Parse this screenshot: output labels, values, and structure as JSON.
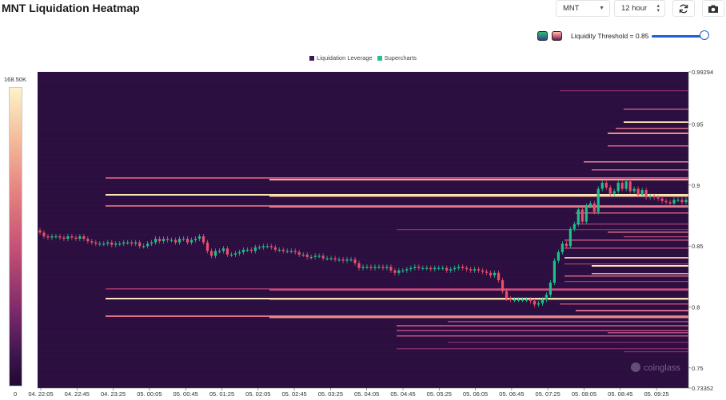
{
  "header": {
    "title": "MNT Liquidation Heatmap"
  },
  "controls": {
    "symbol_select": {
      "value": "MNT"
    },
    "timeframe_select": {
      "value": "12 hour"
    },
    "refresh_icon": "refresh-icon",
    "camera_icon": "camera-icon"
  },
  "threshold": {
    "label": "Liquidity Threshold = 0.85",
    "value": 0.85
  },
  "legend": {
    "items": [
      "Liquidation Leverage",
      "Supercharts"
    ]
  },
  "colorbar": {
    "max_label": "168.50K",
    "min_label": "0"
  },
  "colors": {
    "leverage": "#3b1a4f",
    "supercharts": "#23c28a",
    "up": "#1ec08a",
    "down": "#ea4f6a",
    "bg": "#2a0e3e"
  },
  "chart_data": {
    "type": "heatmap",
    "y_labels": [
      "0.99294",
      "0.95",
      "0.9",
      "0.85",
      "0.8",
      "0.75",
      "0.73352"
    ],
    "ylim": [
      0.73352,
      0.99294
    ],
    "x_labels": [
      "04. 22:05",
      "04. 22:45",
      "04. 23:25",
      "05. 00:05",
      "05. 00:45",
      "05. 01:25",
      "05. 02:05",
      "05. 02:45",
      "05. 03:25",
      "05. 04:05",
      "05. 04:45",
      "05. 05:25",
      "05. 06:05",
      "05. 06:45",
      "05. 07:25",
      "05. 08:05",
      "05. 08:45",
      "05. 09:25"
    ],
    "watermark": "coinglass",
    "candles_close": [
      0.861,
      0.858,
      0.857,
      0.858,
      0.858,
      0.857,
      0.856,
      0.858,
      0.857,
      0.856,
      0.858,
      0.856,
      0.854,
      0.853,
      0.852,
      0.852,
      0.852,
      0.853,
      0.851,
      0.852,
      0.852,
      0.853,
      0.853,
      0.852,
      0.853,
      0.85,
      0.85,
      0.852,
      0.853,
      0.856,
      0.854,
      0.856,
      0.855,
      0.855,
      0.853,
      0.856,
      0.856,
      0.853,
      0.855,
      0.856,
      0.858,
      0.853,
      0.846,
      0.842,
      0.846,
      0.846,
      0.848,
      0.843,
      0.843,
      0.844,
      0.845,
      0.847,
      0.847,
      0.846,
      0.849,
      0.849,
      0.85,
      0.85,
      0.849,
      0.847,
      0.847,
      0.846,
      0.846,
      0.846,
      0.845,
      0.843,
      0.843,
      0.841,
      0.841,
      0.842,
      0.842,
      0.84,
      0.84,
      0.84,
      0.839,
      0.839,
      0.838,
      0.839,
      0.839,
      0.836,
      0.832,
      0.833,
      0.833,
      0.832,
      0.833,
      0.833,
      0.832,
      0.833,
      0.83,
      0.828,
      0.83,
      0.83,
      0.831,
      0.832,
      0.833,
      0.832,
      0.832,
      0.832,
      0.831,
      0.832,
      0.832,
      0.832,
      0.83,
      0.831,
      0.832,
      0.833,
      0.832,
      0.831,
      0.83,
      0.831,
      0.83,
      0.829,
      0.828,
      0.826,
      0.828,
      0.822,
      0.813,
      0.807,
      0.806,
      0.806,
      0.806,
      0.806,
      0.806,
      0.805,
      0.802,
      0.803,
      0.806,
      0.81,
      0.82,
      0.838,
      0.845,
      0.852,
      0.85,
      0.864,
      0.868,
      0.88,
      0.87,
      0.883,
      0.885,
      0.878,
      0.897,
      0.902,
      0.898,
      0.893,
      0.895,
      0.902,
      0.897,
      0.903,
      0.895,
      0.897,
      0.892,
      0.896,
      0.89,
      0.891,
      0.89,
      0.889,
      0.887,
      0.886,
      0.885,
      0.888,
      0.888,
      0.886,
      0.888
    ]
  }
}
